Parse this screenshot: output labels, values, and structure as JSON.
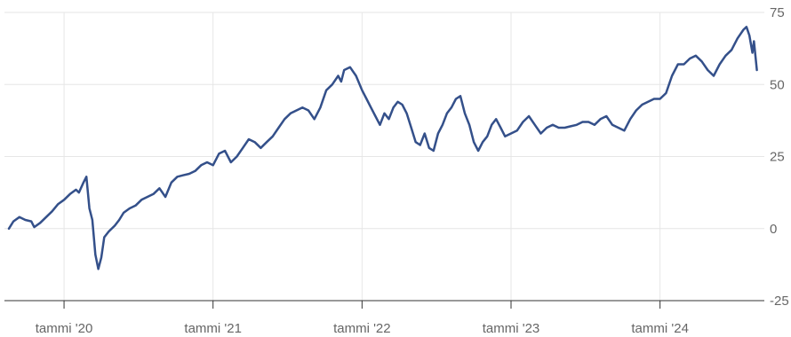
{
  "chart_data": {
    "type": "line",
    "title": "",
    "xlabel": "",
    "ylabel": "",
    "x_ticks": [
      {
        "x": 2020.0,
        "label": "tammi '20"
      },
      {
        "x": 2021.0,
        "label": "tammi '21"
      },
      {
        "x": 2022.0,
        "label": "tammi '22"
      },
      {
        "x": 2023.0,
        "label": "tammi '23"
      },
      {
        "x": 2024.0,
        "label": "tammi '24"
      }
    ],
    "y_ticks": [
      {
        "y": 75,
        "label": "75"
      },
      {
        "y": 50,
        "label": "50"
      },
      {
        "y": 25,
        "label": "25"
      },
      {
        "y": 0,
        "label": "0"
      },
      {
        "y": -25,
        "label": "-25"
      }
    ],
    "xlim": [
      2019.6,
      2024.7
    ],
    "ylim": [
      -25,
      75
    ],
    "grid": true,
    "series": [
      {
        "color": "#34508a",
        "points": [
          [
            2019.63,
            0
          ],
          [
            2019.66,
            2.5
          ],
          [
            2019.7,
            4
          ],
          [
            2019.74,
            3
          ],
          [
            2019.78,
            2.5
          ],
          [
            2019.8,
            0.5
          ],
          [
            2019.84,
            2
          ],
          [
            2019.88,
            4
          ],
          [
            2019.92,
            6
          ],
          [
            2019.96,
            8.5
          ],
          [
            2020.0,
            10
          ],
          [
            2020.04,
            12
          ],
          [
            2020.08,
            13.5
          ],
          [
            2020.1,
            12.5
          ],
          [
            2020.13,
            16
          ],
          [
            2020.15,
            18
          ],
          [
            2020.17,
            7
          ],
          [
            2020.19,
            3
          ],
          [
            2020.21,
            -9
          ],
          [
            2020.23,
            -14
          ],
          [
            2020.25,
            -10
          ],
          [
            2020.27,
            -3
          ],
          [
            2020.3,
            -1
          ],
          [
            2020.34,
            1
          ],
          [
            2020.37,
            3
          ],
          [
            2020.4,
            5.5
          ],
          [
            2020.44,
            7
          ],
          [
            2020.48,
            8
          ],
          [
            2020.52,
            10
          ],
          [
            2020.56,
            11
          ],
          [
            2020.6,
            12
          ],
          [
            2020.64,
            14
          ],
          [
            2020.68,
            11
          ],
          [
            2020.72,
            16
          ],
          [
            2020.76,
            18
          ],
          [
            2020.8,
            18.5
          ],
          [
            2020.84,
            19
          ],
          [
            2020.88,
            20
          ],
          [
            2020.92,
            22
          ],
          [
            2020.96,
            23
          ],
          [
            2021.0,
            22
          ],
          [
            2021.04,
            26
          ],
          [
            2021.08,
            27
          ],
          [
            2021.12,
            23
          ],
          [
            2021.16,
            25
          ],
          [
            2021.2,
            28
          ],
          [
            2021.24,
            31
          ],
          [
            2021.28,
            30
          ],
          [
            2021.32,
            28
          ],
          [
            2021.36,
            30
          ],
          [
            2021.4,
            32
          ],
          [
            2021.44,
            35
          ],
          [
            2021.48,
            38
          ],
          [
            2021.52,
            40
          ],
          [
            2021.56,
            41
          ],
          [
            2021.6,
            42
          ],
          [
            2021.64,
            41
          ],
          [
            2021.68,
            38
          ],
          [
            2021.72,
            42
          ],
          [
            2021.76,
            48
          ],
          [
            2021.8,
            50
          ],
          [
            2021.84,
            53
          ],
          [
            2021.86,
            51
          ],
          [
            2021.88,
            55
          ],
          [
            2021.92,
            56
          ],
          [
            2021.96,
            53
          ],
          [
            2022.0,
            48
          ],
          [
            2022.03,
            45
          ],
          [
            2022.06,
            42
          ],
          [
            2022.09,
            39
          ],
          [
            2022.12,
            36
          ],
          [
            2022.15,
            40
          ],
          [
            2022.18,
            38
          ],
          [
            2022.21,
            42
          ],
          [
            2022.24,
            44
          ],
          [
            2022.27,
            43
          ],
          [
            2022.3,
            40
          ],
          [
            2022.33,
            35
          ],
          [
            2022.36,
            30
          ],
          [
            2022.39,
            29
          ],
          [
            2022.42,
            33
          ],
          [
            2022.45,
            28
          ],
          [
            2022.48,
            27
          ],
          [
            2022.51,
            33
          ],
          [
            2022.54,
            36
          ],
          [
            2022.57,
            40
          ],
          [
            2022.6,
            42
          ],
          [
            2022.63,
            45
          ],
          [
            2022.66,
            46
          ],
          [
            2022.69,
            40
          ],
          [
            2022.72,
            36
          ],
          [
            2022.75,
            30
          ],
          [
            2022.78,
            27
          ],
          [
            2022.81,
            30
          ],
          [
            2022.84,
            32
          ],
          [
            2022.87,
            36
          ],
          [
            2022.9,
            38
          ],
          [
            2022.93,
            35
          ],
          [
            2022.96,
            32
          ],
          [
            2023.0,
            33
          ],
          [
            2023.04,
            34
          ],
          [
            2023.08,
            37
          ],
          [
            2023.12,
            39
          ],
          [
            2023.16,
            36
          ],
          [
            2023.2,
            33
          ],
          [
            2023.24,
            35
          ],
          [
            2023.28,
            36
          ],
          [
            2023.32,
            35
          ],
          [
            2023.36,
            35
          ],
          [
            2023.4,
            35.5
          ],
          [
            2023.44,
            36
          ],
          [
            2023.48,
            37
          ],
          [
            2023.52,
            37
          ],
          [
            2023.56,
            36
          ],
          [
            2023.6,
            38
          ],
          [
            2023.64,
            39
          ],
          [
            2023.68,
            36
          ],
          [
            2023.72,
            35
          ],
          [
            2023.76,
            34
          ],
          [
            2023.8,
            38
          ],
          [
            2023.84,
            41
          ],
          [
            2023.88,
            43
          ],
          [
            2023.92,
            44
          ],
          [
            2023.96,
            45
          ],
          [
            2024.0,
            45
          ],
          [
            2024.04,
            47
          ],
          [
            2024.08,
            53
          ],
          [
            2024.12,
            57
          ],
          [
            2024.16,
            57
          ],
          [
            2024.2,
            59
          ],
          [
            2024.24,
            60
          ],
          [
            2024.28,
            58
          ],
          [
            2024.32,
            55
          ],
          [
            2024.36,
            53
          ],
          [
            2024.4,
            57
          ],
          [
            2024.44,
            60
          ],
          [
            2024.48,
            62
          ],
          [
            2024.52,
            66
          ],
          [
            2024.56,
            69
          ],
          [
            2024.58,
            70
          ],
          [
            2024.6,
            67
          ],
          [
            2024.62,
            61
          ],
          [
            2024.63,
            65
          ],
          [
            2024.65,
            55
          ]
        ]
      }
    ]
  }
}
